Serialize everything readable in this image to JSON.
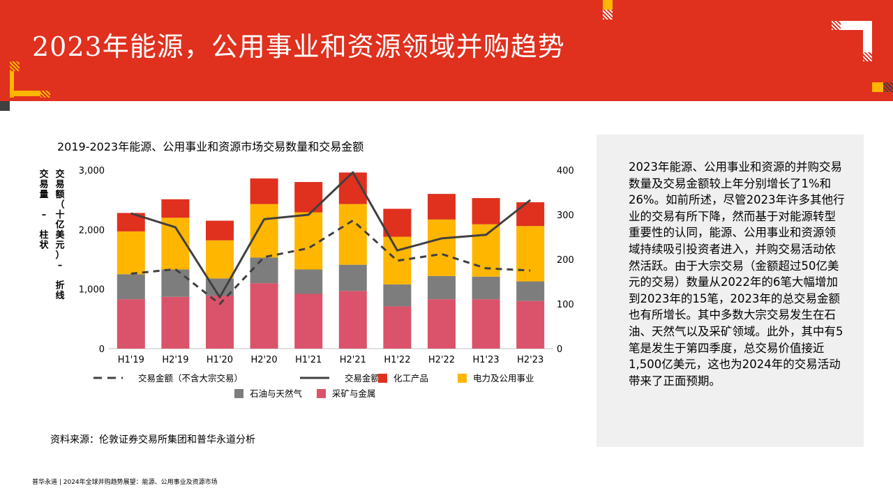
{
  "page": {
    "title": "2023年能源，公用事业和资源领域并购趋势",
    "footer": "普华永道 | 2024年全球并购趋势展望：能源、公用事业及资源市场",
    "source": "资料来源：伦敦证券交易所集团和普华永道分析"
  },
  "colors": {
    "brand_red": "#e0301e",
    "chemicals": "#e0301e",
    "power": "#ffb600",
    "oil_gas": "#7d7d7d",
    "mining": "#db536a",
    "line": "#404040",
    "panel_bg": "#f0f0f0"
  },
  "chart_data": {
    "type": "bar",
    "stacked": true,
    "title": "2019-2023年能源、公用事业和资源市场交易数量和交易金额",
    "categories": [
      "H1'19",
      "H2'19",
      "H1'20",
      "H2'20",
      "H1'21",
      "H2'21",
      "H1'22",
      "H2'22",
      "H1'23",
      "H2'23"
    ],
    "ylabel_left": "交易量 – 柱状",
    "ylabel_right": "交易额（十亿美元）– 折线",
    "ylim_left": [
      0,
      3000
    ],
    "yticks_left": [
      "0",
      "1,000",
      "2,000",
      "3,000"
    ],
    "ylim_right": [
      0,
      400
    ],
    "yticks_right": [
      "0",
      "100",
      "200",
      "300",
      "400"
    ],
    "series": [
      {
        "name": "采矿与金属",
        "kind": "bar",
        "color": "#db536a",
        "values": [
          830,
          870,
          890,
          1100,
          920,
          970,
          710,
          830,
          830,
          800
        ]
      },
      {
        "name": "石油与天然气",
        "kind": "bar",
        "color": "#7d7d7d",
        "values": [
          420,
          460,
          290,
          430,
          410,
          440,
          370,
          390,
          380,
          330
        ]
      },
      {
        "name": "电力及公用事业",
        "kind": "bar",
        "color": "#ffb600",
        "values": [
          720,
          870,
          640,
          900,
          960,
          1020,
          800,
          950,
          880,
          930
        ]
      },
      {
        "name": "化工产品",
        "kind": "bar",
        "color": "#e0301e",
        "values": [
          310,
          310,
          330,
          430,
          510,
          530,
          470,
          430,
          440,
          400
        ]
      },
      {
        "name": "交易金额",
        "kind": "line",
        "axis": "right",
        "style": "solid",
        "values": [
          303,
          272,
          115,
          290,
          300,
          395,
          220,
          247,
          255,
          333
        ]
      },
      {
        "name": "交易金额（不含大宗交易）",
        "kind": "line",
        "axis": "right",
        "style": "dashed",
        "values": [
          168,
          178,
          100,
          205,
          225,
          287,
          197,
          212,
          180,
          175
        ]
      }
    ],
    "legend_rows": [
      [
        "交易金额（不含大宗交易）",
        "交易金额",
        "化工产品",
        "电力及公用事业"
      ],
      [
        "石油与天然气",
        "采矿与金属"
      ]
    ],
    "legend_position": "bottom"
  },
  "panel": {
    "text": "2023年能源、公用事业和资源的并购交易数量及交易金额较上年分别增长了1%和26%。如前所述，尽管2023年许多其他行业的交易有所下降，然而基于对能源转型重要性的认同，能源、公用事业和资源领域持续吸引投资者进入，并购交易活动依然活跃。由于大宗交易（金额超过50亿美元的交易）数量从2022年的6笔大幅增加到2023年的15笔，2023年的总交易金额也有所增长。其中多数大宗交易发生在石油、天然气以及采矿领域。此外，其中有5笔是发生于第四季度，总交易价值接近1,500亿美元，这也为2024年的交易活动带来了正面预期。"
  }
}
